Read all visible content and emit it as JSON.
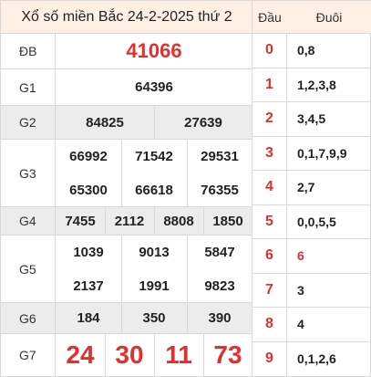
{
  "title": "Xổ số miền Bắc 24-2-2025 thứ 2",
  "prizes": {
    "db": {
      "label": "ĐB",
      "numbers": [
        "41066"
      ]
    },
    "g1": {
      "label": "G1",
      "numbers": [
        "64396"
      ]
    },
    "g2": {
      "label": "G2",
      "numbers": [
        "84825",
        "27639"
      ]
    },
    "g3": {
      "label": "G3",
      "numbers": [
        "66992",
        "71542",
        "29531",
        "65300",
        "66618",
        "76355"
      ]
    },
    "g4": {
      "label": "G4",
      "numbers": [
        "7455",
        "2112",
        "8808",
        "1850"
      ]
    },
    "g5": {
      "label": "G5",
      "numbers": [
        "1039",
        "9013",
        "5847",
        "2137",
        "1991",
        "9823"
      ]
    },
    "g6": {
      "label": "G6",
      "numbers": [
        "184",
        "350",
        "390"
      ]
    },
    "g7": {
      "label": "G7",
      "numbers": [
        "24",
        "30",
        "11",
        "73"
      ]
    }
  },
  "loto": {
    "head_label": "Đầu",
    "tail_label": "Đuôi",
    "rows": [
      {
        "dau": "0",
        "duoi": "0,8"
      },
      {
        "dau": "1",
        "duoi": "1,2,3,8"
      },
      {
        "dau": "2",
        "duoi": "3,4,5"
      },
      {
        "dau": "3",
        "duoi": "0,1,7,9,9"
      },
      {
        "dau": "4",
        "duoi": "2,7"
      },
      {
        "dau": "5",
        "duoi": "0,0,5,5"
      },
      {
        "dau": "6",
        "duoi": "6"
      },
      {
        "dau": "7",
        "duoi": "3"
      },
      {
        "dau": "8",
        "duoi": "4"
      },
      {
        "dau": "9",
        "duoi": "0,1,2,6"
      }
    ]
  },
  "colors": {
    "accent": "#e03030",
    "header_bg": "#fff0e6",
    "alt_row_bg": "#ececec"
  }
}
